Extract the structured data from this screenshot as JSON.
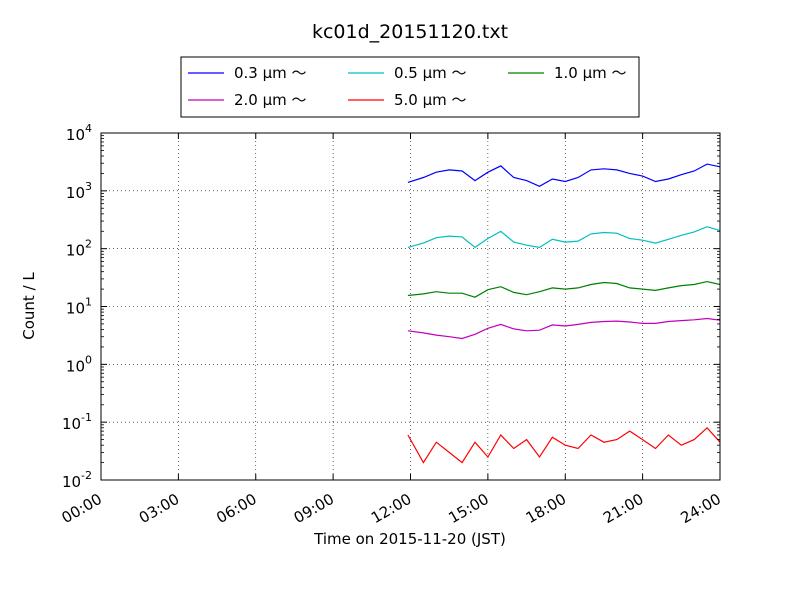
{
  "chart_data": {
    "type": "line",
    "title": "kc01d_20151120.txt",
    "xlabel": "Time on 2015-11-20 (JST)",
    "ylabel": "Count / L",
    "xlim": [
      "00:00",
      "24:00"
    ],
    "ylim": [
      0.01,
      10000
    ],
    "yscale": "log",
    "grid": true,
    "legend_position": "top",
    "x_ticks": [
      "00:00",
      "03:00",
      "06:00",
      "09:00",
      "12:00",
      "15:00",
      "18:00",
      "21:00",
      "24:00"
    ],
    "y_ticks": [
      {
        "base": "10",
        "exp": "-2"
      },
      {
        "base": "10",
        "exp": "-1"
      },
      {
        "base": "10",
        "exp": "0"
      },
      {
        "base": "10",
        "exp": "1"
      },
      {
        "base": "10",
        "exp": "2"
      },
      {
        "base": "10",
        "exp": "3"
      },
      {
        "base": "10",
        "exp": "4"
      }
    ],
    "x_hours": [
      11.9,
      12.5,
      13.0,
      13.5,
      14.0,
      14.5,
      15.0,
      15.5,
      16.0,
      16.5,
      17.0,
      17.5,
      18.0,
      18.5,
      19.0,
      19.5,
      20.0,
      20.5,
      21.0,
      21.5,
      22.0,
      22.5,
      23.0,
      23.5,
      24.0
    ],
    "series": [
      {
        "name": "0.3 μm ～",
        "color": "#0000ff",
        "values": [
          1400,
          1700,
          2100,
          2300,
          2200,
          1500,
          2100,
          2700,
          1700,
          1500,
          1200,
          1600,
          1450,
          1700,
          2300,
          2400,
          2300,
          2000,
          1800,
          1450,
          1600,
          1900,
          2200,
          2900,
          2600
        ]
      },
      {
        "name": "0.5 μm ～",
        "color": "#00bfbf",
        "values": [
          105,
          125,
          155,
          165,
          160,
          105,
          150,
          200,
          130,
          115,
          105,
          145,
          130,
          135,
          180,
          190,
          185,
          150,
          140,
          125,
          145,
          170,
          195,
          240,
          205
        ]
      },
      {
        "name": "1.0 μm ～",
        "color": "#008000",
        "values": [
          15.5,
          16.5,
          18,
          17,
          17,
          14.5,
          19.5,
          22,
          17.5,
          16,
          18,
          21,
          20,
          21,
          24,
          26,
          25,
          21,
          20,
          19,
          21,
          23,
          24,
          27,
          24
        ]
      },
      {
        "name": "2.0 μm ～",
        "color": "#bf00bf",
        "values": [
          3.8,
          3.5,
          3.2,
          3.0,
          2.8,
          3.3,
          4.2,
          4.9,
          4.1,
          3.8,
          3.9,
          4.8,
          4.6,
          4.9,
          5.3,
          5.5,
          5.6,
          5.4,
          5.1,
          5.1,
          5.5,
          5.7,
          5.9,
          6.2,
          5.8
        ]
      },
      {
        "name": "5.0 μm ～",
        "color": "#ff0000",
        "values": [
          0.06,
          0.02,
          0.045,
          0.03,
          0.02,
          0.045,
          0.025,
          0.06,
          0.035,
          0.05,
          0.025,
          0.055,
          0.04,
          0.035,
          0.06,
          0.045,
          0.05,
          0.07,
          0.05,
          0.035,
          0.06,
          0.04,
          0.05,
          0.08,
          0.045
        ]
      }
    ]
  }
}
